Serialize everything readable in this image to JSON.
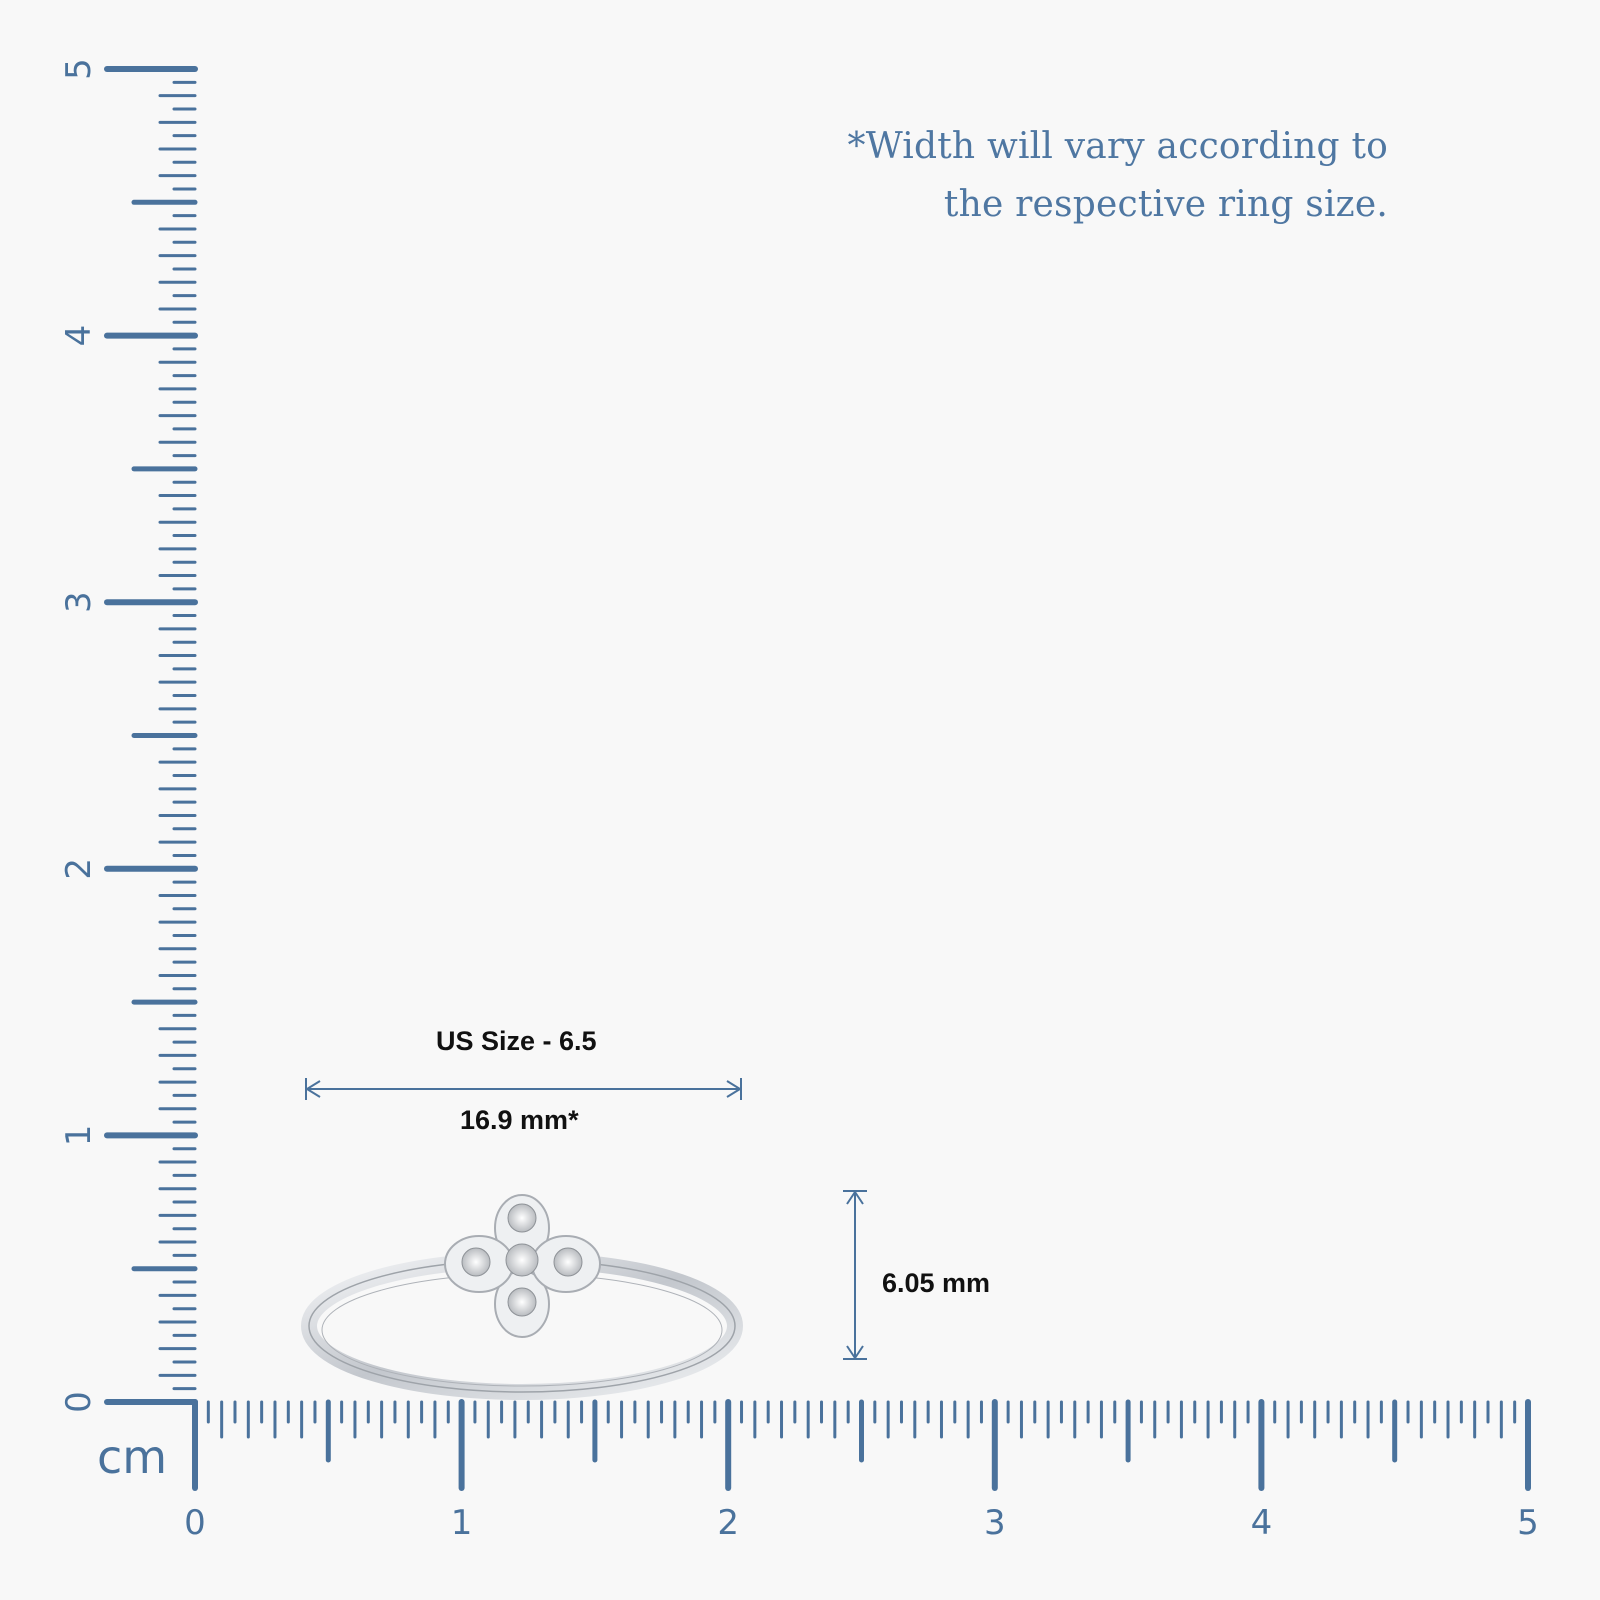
{
  "note": {
    "line1": "*Width will vary according to",
    "line2": "the respective ring size."
  },
  "ruler": {
    "unit": "cm",
    "x_labels": [
      "0",
      "1",
      "2",
      "3",
      "4",
      "5"
    ],
    "y_labels": [
      "0",
      "1",
      "2",
      "3",
      "4",
      "5"
    ],
    "color": "#4a729c"
  },
  "dimensions": {
    "size_label": "US Size - 6.5",
    "width_label": "16.9 mm*",
    "height_label": "6.05 mm",
    "arrow_color": "#4a729c"
  },
  "product": {
    "image_alt": "White gold clover diamond ring"
  }
}
